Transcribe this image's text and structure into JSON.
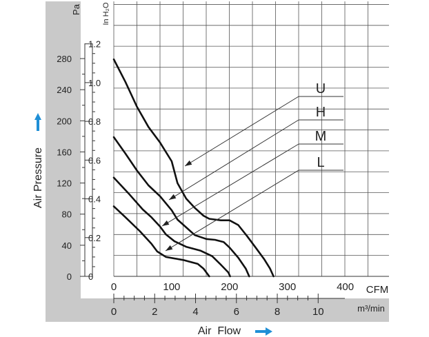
{
  "chart_data": {
    "type": "line",
    "x_unit": "CFM",
    "x_ticks": [
      "0",
      "100",
      "200",
      "300",
      "400"
    ],
    "x_secondary_unit": "m³/min",
    "x_secondary_ticks": [
      "0",
      "2",
      "4",
      "6",
      "8",
      "10"
    ],
    "y_unit": "Pa",
    "y_ticks": [
      "0",
      "40",
      "80",
      "120",
      "160",
      "200",
      "240",
      "280"
    ],
    "y_secondary_unit": "In H₂O",
    "y_secondary_ticks": [
      "0",
      "0.2",
      "0.4",
      "0.6",
      "0.8",
      "1.0",
      "1.2"
    ],
    "xlabel": "Air  Flow",
    "ylabel": "Air Pressure",
    "xlim": [
      0,
      450
    ],
    "ylim": [
      0,
      305
    ],
    "grid": true,
    "series": [
      {
        "name": "U",
        "points": [
          [
            0,
            279
          ],
          [
            20,
            250
          ],
          [
            40,
            218
          ],
          [
            60,
            192
          ],
          [
            80,
            172
          ],
          [
            100,
            148
          ],
          [
            110,
            120
          ],
          [
            125,
            100
          ],
          [
            140,
            88
          ],
          [
            155,
            78
          ],
          [
            165,
            74
          ],
          [
            185,
            72
          ],
          [
            200,
            72
          ],
          [
            215,
            66
          ],
          [
            230,
            52
          ],
          [
            245,
            37
          ],
          [
            260,
            22
          ],
          [
            270,
            10
          ],
          [
            276,
            0
          ]
        ]
      },
      {
        "name": "H",
        "points": [
          [
            0,
            179
          ],
          [
            20,
            158
          ],
          [
            40,
            136
          ],
          [
            60,
            117
          ],
          [
            80,
            103
          ],
          [
            100,
            85
          ],
          [
            110,
            73
          ],
          [
            125,
            63
          ],
          [
            140,
            53
          ],
          [
            160,
            48
          ],
          [
            175,
            47
          ],
          [
            190,
            44
          ],
          [
            200,
            37
          ],
          [
            215,
            24
          ],
          [
            228,
            10
          ],
          [
            234,
            0
          ]
        ]
      },
      {
        "name": "M",
        "points": [
          [
            0,
            127
          ],
          [
            25,
            107
          ],
          [
            50,
            86
          ],
          [
            65,
            76
          ],
          [
            80,
            64
          ],
          [
            90,
            54
          ],
          [
            105,
            45
          ],
          [
            125,
            38
          ],
          [
            150,
            33
          ],
          [
            170,
            26
          ],
          [
            185,
            15
          ],
          [
            198,
            5
          ],
          [
            201,
            0
          ]
        ]
      },
      {
        "name": "L",
        "points": [
          [
            0,
            90
          ],
          [
            20,
            76
          ],
          [
            45,
            58
          ],
          [
            65,
            42
          ],
          [
            75,
            32
          ],
          [
            90,
            25
          ],
          [
            120,
            21
          ],
          [
            145,
            16
          ],
          [
            155,
            10
          ],
          [
            165,
            0
          ]
        ]
      }
    ]
  }
}
